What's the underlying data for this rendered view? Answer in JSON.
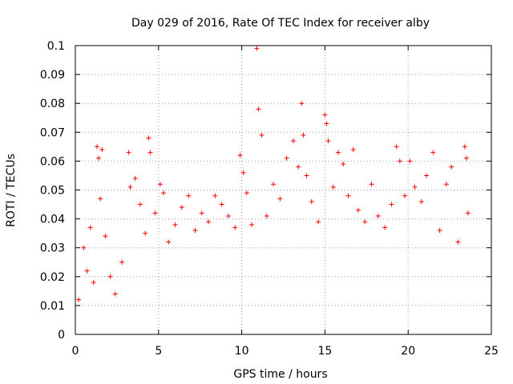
{
  "chart_data": {
    "type": "scatter",
    "title": "Day 029 of 2016, Rate Of TEC Index for receiver alby",
    "xlabel": "GPS time / hours",
    "ylabel": "ROTI / TECUs",
    "xlim": [
      0,
      25
    ],
    "ylim": [
      0,
      0.1
    ],
    "grid": true,
    "marker": "+",
    "series_color": "#ff0000",
    "x_ticks": [
      "0",
      "5",
      "10",
      "15",
      "20",
      "25"
    ],
    "x_tick_values": [
      0,
      5,
      10,
      15,
      20,
      25
    ],
    "y_ticks": [
      "0",
      "0.01",
      "0.02",
      "0.03",
      "0.04",
      "0.05",
      "0.06",
      "0.07",
      "0.08",
      "0.09",
      "0.1"
    ],
    "y_tick_values": [
      0,
      0.01,
      0.02,
      0.03,
      0.04,
      0.05,
      0.06,
      0.07,
      0.08,
      0.09,
      0.1
    ],
    "series": [
      {
        "name": "ROTI",
        "points": [
          [
            0.2,
            0.012
          ],
          [
            0.5,
            0.03
          ],
          [
            0.7,
            0.022
          ],
          [
            0.9,
            0.037
          ],
          [
            1.1,
            0.018
          ],
          [
            1.3,
            0.065
          ],
          [
            1.4,
            0.061
          ],
          [
            1.5,
            0.047
          ],
          [
            1.6,
            0.064
          ],
          [
            1.8,
            0.034
          ],
          [
            2.1,
            0.02
          ],
          [
            2.4,
            0.014
          ],
          [
            2.8,
            0.025
          ],
          [
            3.2,
            0.063
          ],
          [
            3.3,
            0.051
          ],
          [
            3.6,
            0.054
          ],
          [
            3.9,
            0.045
          ],
          [
            4.2,
            0.035
          ],
          [
            4.4,
            0.068
          ],
          [
            4.5,
            0.063
          ],
          [
            4.8,
            0.042
          ],
          [
            5.1,
            0.052
          ],
          [
            5.3,
            0.049
          ],
          [
            5.6,
            0.032
          ],
          [
            6.0,
            0.038
          ],
          [
            6.4,
            0.044
          ],
          [
            6.8,
            0.048
          ],
          [
            7.2,
            0.036
          ],
          [
            7.6,
            0.042
          ],
          [
            8.0,
            0.039
          ],
          [
            8.4,
            0.048
          ],
          [
            8.8,
            0.045
          ],
          [
            9.2,
            0.041
          ],
          [
            9.6,
            0.037
          ],
          [
            9.9,
            0.062
          ],
          [
            10.1,
            0.056
          ],
          [
            10.3,
            0.049
          ],
          [
            10.6,
            0.038
          ],
          [
            10.9,
            0.099
          ],
          [
            11.0,
            0.078
          ],
          [
            11.2,
            0.069
          ],
          [
            11.5,
            0.041
          ],
          [
            11.9,
            0.052
          ],
          [
            12.3,
            0.047
          ],
          [
            12.7,
            0.061
          ],
          [
            13.1,
            0.067
          ],
          [
            13.4,
            0.058
          ],
          [
            13.6,
            0.08
          ],
          [
            13.7,
            0.069
          ],
          [
            13.9,
            0.055
          ],
          [
            14.2,
            0.046
          ],
          [
            14.6,
            0.039
          ],
          [
            15.0,
            0.076
          ],
          [
            15.1,
            0.073
          ],
          [
            15.2,
            0.067
          ],
          [
            15.5,
            0.051
          ],
          [
            15.8,
            0.063
          ],
          [
            16.1,
            0.059
          ],
          [
            16.4,
            0.048
          ],
          [
            16.7,
            0.064
          ],
          [
            17.0,
            0.043
          ],
          [
            17.4,
            0.039
          ],
          [
            17.8,
            0.052
          ],
          [
            18.2,
            0.041
          ],
          [
            18.6,
            0.037
          ],
          [
            19.0,
            0.045
          ],
          [
            19.3,
            0.065
          ],
          [
            19.5,
            0.06
          ],
          [
            19.8,
            0.048
          ],
          [
            20.1,
            0.06
          ],
          [
            20.4,
            0.051
          ],
          [
            20.8,
            0.046
          ],
          [
            21.1,
            0.055
          ],
          [
            21.5,
            0.063
          ],
          [
            21.9,
            0.036
          ],
          [
            22.3,
            0.052
          ],
          [
            22.6,
            0.058
          ],
          [
            23.0,
            0.032
          ],
          [
            23.4,
            0.065
          ],
          [
            23.5,
            0.061
          ],
          [
            23.6,
            0.042
          ]
        ]
      }
    ]
  }
}
